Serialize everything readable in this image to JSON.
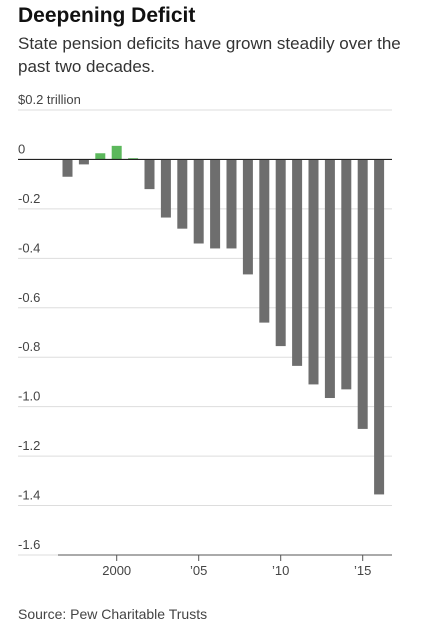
{
  "title": "Deepening Deficit",
  "subtitle": "State pension deficits have grown steadily over the past two decades.",
  "source": "Source: Pew Charitable Trusts",
  "colors": {
    "positive": "#5cb85c",
    "negative": "#6e6e6e",
    "grid": "#dddddd",
    "zero": "#222222"
  },
  "chart_data": {
    "type": "bar",
    "x": [
      1997,
      1998,
      1999,
      2000,
      2001,
      2002,
      2003,
      2004,
      2005,
      2006,
      2007,
      2008,
      2009,
      2010,
      2011,
      2012,
      2013,
      2014,
      2015,
      2016
    ],
    "values": [
      -0.07,
      -0.02,
      0.025,
      0.055,
      0.005,
      -0.12,
      -0.235,
      -0.28,
      -0.34,
      -0.36,
      -0.36,
      -0.465,
      -0.66,
      -0.755,
      -0.835,
      -0.91,
      -0.965,
      -0.93,
      -1.09,
      -1.355
    ],
    "ylim": [
      -1.6,
      0.2
    ],
    "yticks": [
      0.2,
      0,
      -0.2,
      -0.4,
      -0.6,
      -0.8,
      -1.0,
      -1.2,
      -1.4,
      -1.6
    ],
    "ytick_labels": [
      "$0.2 trillion",
      "0",
      "-0.2",
      "-0.4",
      "-0.6",
      "-0.8",
      "-1.0",
      "-1.2",
      "-1.4",
      "-1.6"
    ],
    "xticks": [
      2000,
      2005,
      2010,
      2015
    ],
    "xtick_labels": [
      "2000",
      "’05",
      "’10",
      "’15"
    ],
    "grid": true
  }
}
